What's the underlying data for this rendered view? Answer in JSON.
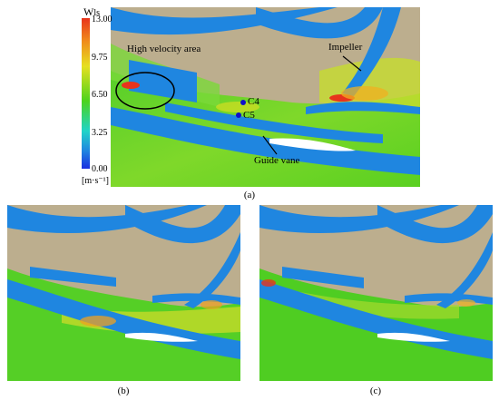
{
  "colorbar": {
    "title": "W",
    "title_sub": "ls",
    "ticks": [
      "13.00",
      "9.75",
      "6.50",
      "3.25",
      "0.00"
    ],
    "unit": "[m·s⁻¹]"
  },
  "annotations": {
    "high_velocity": "High velocity area",
    "impeller": "Impeller",
    "guide_vane": "Guide vane",
    "point_c4": "C4",
    "point_c5": "C5"
  },
  "captions": {
    "a": "(a)",
    "b": "(b)",
    "c": "(c)"
  },
  "colors": {
    "blade": "#1f86e0",
    "hub": "#b9a98a",
    "flow_green": "#4cd31c",
    "flow_yellow": "#e6e020",
    "flow_red": "#e8331c",
    "vane_white": "#ffffff",
    "marker": "#1010c8"
  }
}
